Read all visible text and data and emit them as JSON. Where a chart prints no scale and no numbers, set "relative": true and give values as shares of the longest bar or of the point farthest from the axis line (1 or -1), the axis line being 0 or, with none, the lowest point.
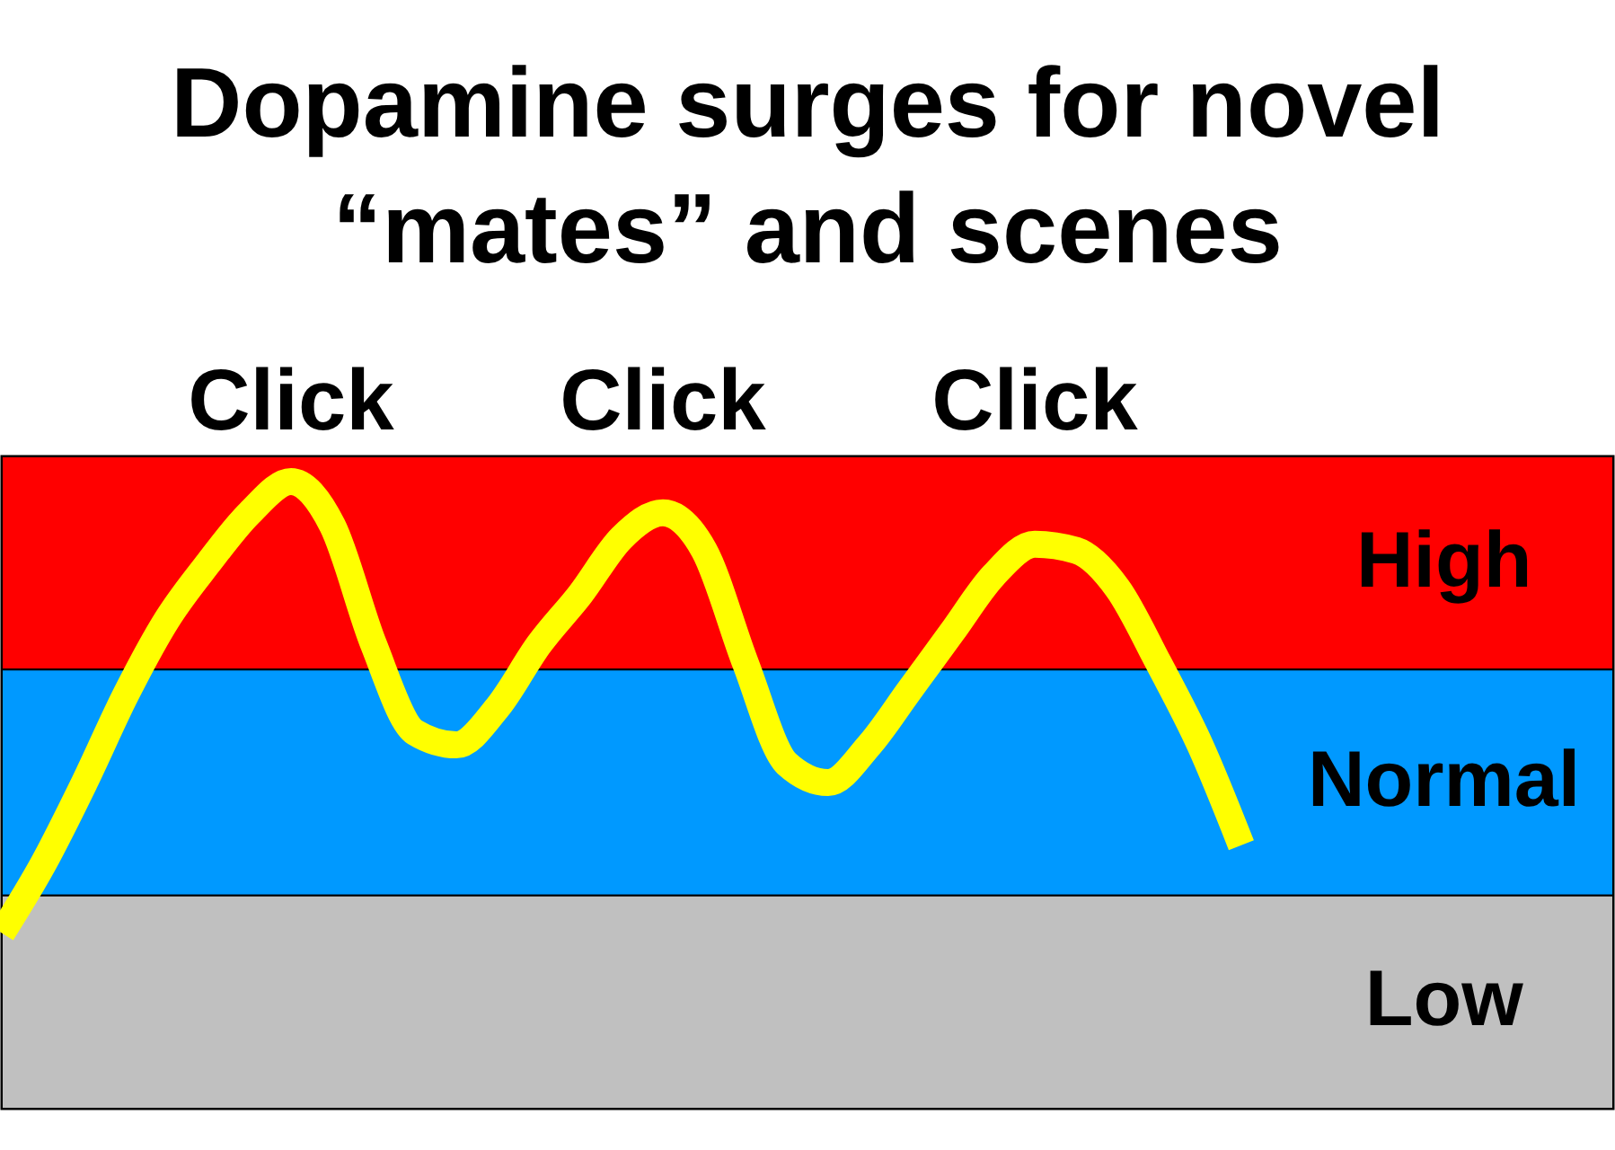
{
  "chart_data": {
    "type": "line",
    "title": "Dopamine surges for novel “mates” and scenes",
    "relative": true,
    "categories": [
      null,
      null,
      null,
      null,
      null,
      null,
      null,
      null,
      null,
      null,
      null,
      null,
      null,
      null,
      null,
      null,
      null,
      null,
      null,
      null,
      null,
      null,
      null,
      null,
      null,
      null,
      null,
      null,
      null,
      null,
      null,
      null,
      null,
      null,
      null,
      null,
      null,
      null,
      null,
      null
    ],
    "series": [
      {
        "color": "#ffff00",
        "values": [
          0.28,
          0.39,
          0.52,
          0.66,
          0.78,
          0.87,
          0.95,
          1.0,
          0.93,
          0.74,
          0.6,
          0.58,
          0.64,
          0.74,
          0.82,
          0.91,
          0.95,
          0.89,
          0.71,
          0.55,
          0.52,
          0.58,
          0.67,
          0.76,
          0.85,
          0.9,
          0.89,
          0.83,
          0.71,
          0.58,
          0.42,
          null,
          null,
          null,
          null,
          null,
          null,
          null,
          null,
          null
        ]
      }
    ],
    "bands": [
      {
        "axis": "y",
        "from": 0.7,
        "to": 1.04,
        "label": "High",
        "color": "#ff0000"
      },
      {
        "axis": "y",
        "from": 0.34,
        "to": 0.7,
        "label": "Normal",
        "color": "#0099ff"
      },
      {
        "axis": "y",
        "from": 0,
        "to": 0.34,
        "label": "Low",
        "color": "#c0c0c0"
      }
    ],
    "annotations": [
      "Click",
      "Click",
      "Click"
    ],
    "line_style": "solid"
  }
}
